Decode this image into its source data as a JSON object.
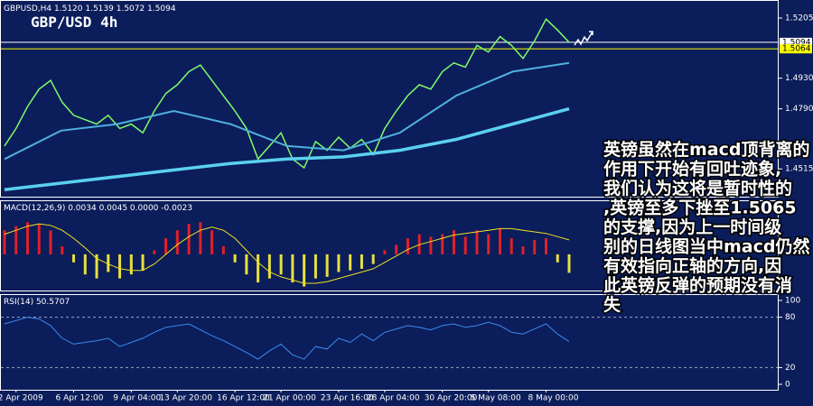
{
  "chart_data": [
    {
      "type": "line",
      "title": "GBPUSD,H4 1.5120 1.5139 1.5072 1.5094",
      "subtitle": "GBP/USD 4h",
      "ylim": [
        1.4388,
        1.5271
      ],
      "yticks": [
        1.4515,
        {
          "value": 1.479,
          "label": "1.4790"
        },
        {
          "value": 1.493,
          "label": "1.4930"
        },
        1.5205
      ],
      "hlines": [
        {
          "value": 1.5094,
          "color": "#ffffff"
        },
        {
          "value": 1.5064,
          "color": "#ffff00"
        }
      ],
      "series": [
        {
          "color": "#7dfc6a",
          "width": 1.5,
          "values": [
            1.462,
            1.47,
            1.48,
            1.488,
            1.492,
            1.482,
            1.476,
            1.474,
            1.472,
            1.476,
            1.47,
            1.472,
            1.468,
            1.478,
            1.486,
            1.49,
            1.496,
            1.499,
            1.492,
            1.485,
            1.478,
            1.47,
            1.456,
            1.462,
            1.468,
            1.456,
            1.452,
            1.464,
            1.46,
            1.466,
            1.461,
            1.465,
            1.458,
            1.47,
            1.478,
            1.485,
            1.49,
            1.488,
            1.496,
            1.5,
            1.498,
            1.508,
            1.505,
            1.512,
            1.508,
            1.502,
            1.51,
            1.52,
            1.515,
            1.5094
          ]
        },
        {
          "color": "#4fb0e0",
          "width": 2,
          "values": [
            1.456,
            1.469,
            1.472,
            1.478,
            1.472,
            1.462,
            1.46,
            1.468,
            1.485,
            1.496,
            1.5
          ]
        },
        {
          "color": "#5bd0f0",
          "width": 3.5,
          "values": [
            1.442,
            1.445,
            1.448,
            1.451,
            1.454,
            1.456,
            1.457,
            1.46,
            1.465,
            1.472,
            1.479
          ]
        }
      ]
    },
    {
      "type": "bar",
      "title": "MACD(12,26,9) 0.0034 0.0045 0.0000 -0.0023",
      "ylim": [
        -0.0045,
        0.0065
      ],
      "series": [
        {
          "type": "bar",
          "pos_color": "#e0202a",
          "neg_color": "#e8e040",
          "values": [
            0.003,
            0.0035,
            0.004,
            0.0038,
            0.003,
            0.001,
            -0.001,
            -0.0025,
            -0.003,
            -0.0022,
            -0.003,
            -0.0025,
            -0.002,
            0.0005,
            0.002,
            0.003,
            0.0038,
            0.004,
            0.003,
            0.001,
            -0.001,
            -0.0025,
            -0.0035,
            -0.003,
            -0.0025,
            -0.0035,
            -0.004,
            -0.003,
            -0.0028,
            -0.0022,
            -0.002,
            -0.0018,
            -0.0012,
            0.0005,
            0.0012,
            0.002,
            0.0025,
            0.0022,
            0.0025,
            0.003,
            0.0022,
            0.003,
            0.0025,
            0.0032,
            0.002,
            0.001,
            0.0018,
            0.002,
            -0.001,
            -0.0023
          ]
        },
        {
          "type": "line",
          "color": "#f0e020",
          "values": [
            0.0025,
            0.003,
            0.0035,
            0.0038,
            0.0036,
            0.003,
            0.002,
            0.0008,
            -0.0005,
            -0.0012,
            -0.0018,
            -0.002,
            -0.002,
            -0.0012,
            0,
            0.0012,
            0.0022,
            0.003,
            0.0034,
            0.003,
            0.002,
            0.0005,
            -0.001,
            -0.0022,
            -0.0028,
            -0.0032,
            -0.0036,
            -0.0036,
            -0.0034,
            -0.003,
            -0.0026,
            -0.0022,
            -0.0018,
            -0.001,
            -0.0002,
            0.0006,
            0.0012,
            0.0016,
            0.002,
            0.0024,
            0.0026,
            0.0028,
            0.003,
            0.0032,
            0.0032,
            0.003,
            0.0028,
            0.0026,
            0.0022,
            0.0018
          ]
        }
      ]
    },
    {
      "type": "line",
      "title": "RSI(14) 50.5707",
      "ylim": [
        0,
        100
      ],
      "yticks": [
        0,
        20,
        80,
        100
      ],
      "categories": [
        null,
        "2 Apr 2009",
        null,
        null,
        null,
        null,
        "6 Apr 12:00",
        null,
        null,
        null,
        null,
        "9 Apr 04:00",
        null,
        null,
        null,
        "13 Apr 20:00",
        null,
        null,
        null,
        null,
        "16 Apr 12:00",
        null,
        null,
        null,
        "21 Apr 00:00",
        null,
        null,
        null,
        null,
        "23 Apr 16:00",
        null,
        null,
        null,
        "28 Apr 04:00",
        null,
        null,
        null,
        null,
        "30 Apr 20:00",
        null,
        null,
        null,
        "5 May 08:00",
        null,
        null,
        null,
        null,
        "8 May 00:00",
        null,
        null
      ],
      "series": [
        {
          "color": "#3a8cf0",
          "width": 1,
          "values": [
            72,
            76,
            80,
            78,
            70,
            55,
            48,
            50,
            52,
            55,
            45,
            50,
            55,
            62,
            68,
            70,
            72,
            65,
            58,
            52,
            45,
            38,
            30,
            40,
            48,
            35,
            30,
            45,
            42,
            55,
            50,
            60,
            52,
            62,
            66,
            70,
            68,
            65,
            70,
            72,
            68,
            70,
            74,
            70,
            62,
            60,
            66,
            72,
            60,
            51
          ]
        }
      ]
    }
  ],
  "annotation": {
    "lines": [
      "英镑虽然在macd顶背离的",
      "作用下开始有回吐迹象,",
      "我们认为这将是暂时性的",
      ",英镑至多下挫至1.5065",
      "的支撑,因为上一时间级",
      "别的日线图当中macd仍然",
      "有效指向正轴的方向,因",
      "此英镑反弹的预期没有消",
      "失"
    ]
  }
}
